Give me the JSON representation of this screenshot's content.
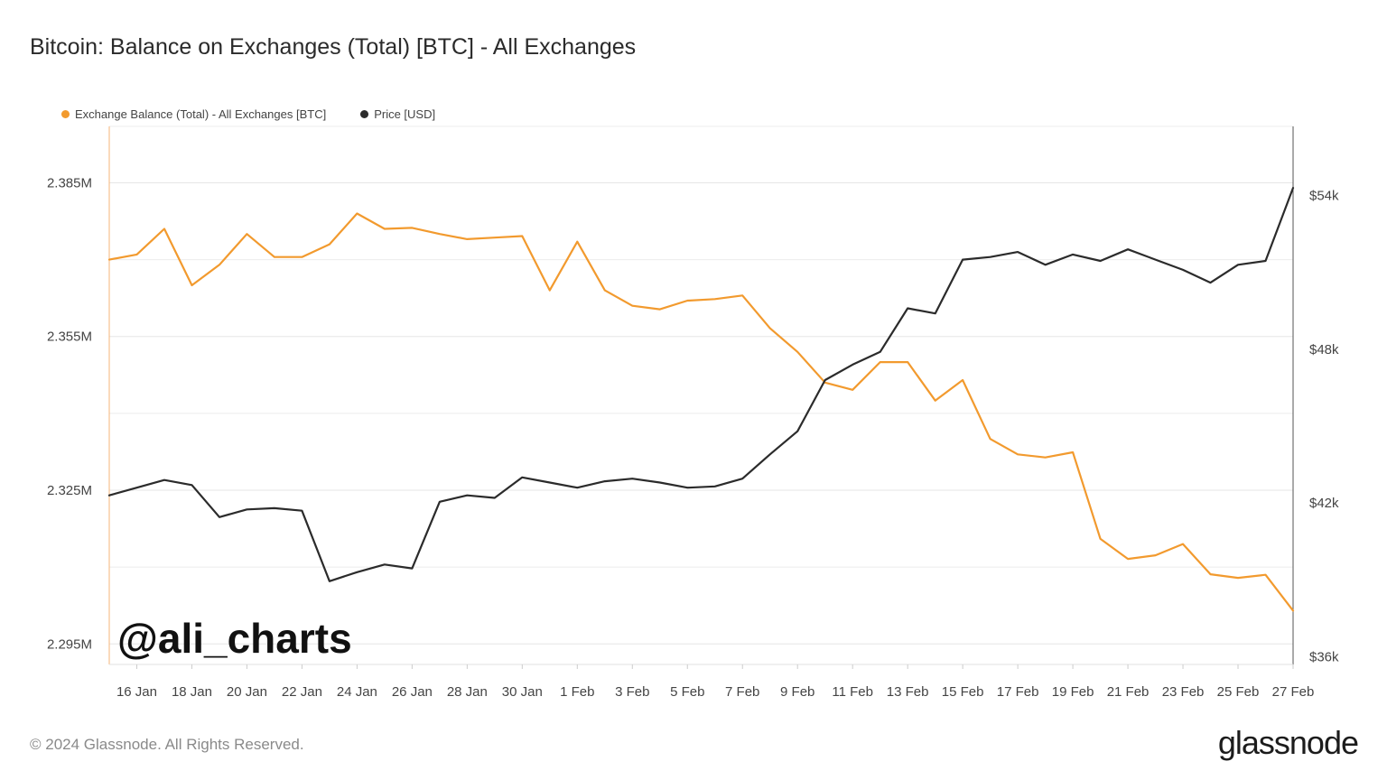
{
  "title": "Bitcoin: Balance on Exchanges (Total) [BTC] - All Exchanges",
  "footer": "© 2024 Glassnode. All Rights Reserved.",
  "logo": "glassnode",
  "legend": [
    {
      "label": "Exchange Balance (Total) - All Exchanges [BTC]",
      "color": "#f29a2e"
    },
    {
      "label": "Price [USD]",
      "color": "#2b2b2b"
    }
  ],
  "chart_data": {
    "type": "line",
    "watermark": "@ali_charts",
    "x_ticks": [
      "16 Jan",
      "18 Jan",
      "20 Jan",
      "22 Jan",
      "24 Jan",
      "26 Jan",
      "28 Jan",
      "30 Jan",
      "1 Feb",
      "3 Feb",
      "5 Feb",
      "7 Feb",
      "9 Feb",
      "11 Feb",
      "13 Feb",
      "15 Feb",
      "17 Feb",
      "19 Feb",
      "21 Feb",
      "23 Feb",
      "25 Feb",
      "27 Feb"
    ],
    "left_axis": {
      "ticks": [
        "2.385M",
        "2.355M",
        "2.325M",
        "2.295M"
      ],
      "tick_values": [
        2385000,
        2355000,
        2325000,
        2295000
      ],
      "ylim": [
        2291000,
        2396000
      ]
    },
    "right_axis": {
      "ticks": [
        "$54k",
        "$48k",
        "$42k",
        "$36k"
      ],
      "tick_values": [
        54000,
        48000,
        42000,
        36000
      ],
      "ylim": [
        35700,
        56700
      ]
    },
    "x_start": "15 Jan",
    "series": [
      {
        "name": "Exchange Balance (Total) - All Exchanges [BTC]",
        "axis": "left",
        "color": "#f29a2e",
        "values": [
          2370000,
          2371000,
          2376000,
          2365000,
          2369000,
          2375000,
          2370500,
          2370500,
          2373000,
          2379000,
          2376000,
          2376200,
          2375000,
          2374000,
          2374300,
          2374600,
          2364000,
          2373500,
          2364000,
          2361000,
          2360300,
          2362000,
          2362300,
          2363000,
          2356600,
          2352000,
          2346000,
          2344600,
          2350000,
          2350000,
          2342500,
          2346500,
          2335000,
          2332000,
          2331400,
          2332400,
          2315500,
          2311600,
          2312300,
          2314500,
          2308600,
          2307900,
          2308500,
          2301500
        ]
      },
      {
        "name": "Price [USD]",
        "axis": "right",
        "color": "#2b2b2b",
        "values": [
          42300,
          42600,
          42900,
          42700,
          41450,
          41750,
          41800,
          41700,
          38950,
          39300,
          39600,
          39450,
          42050,
          42300,
          42200,
          43000,
          42800,
          42600,
          42850,
          42950,
          42800,
          42600,
          42650,
          42950,
          43900,
          44800,
          46800,
          47400,
          47900,
          49600,
          49400,
          51500,
          51600,
          51800,
          51300,
          51700,
          51450,
          51900,
          51500,
          51100,
          50600,
          51300,
          51450,
          54300
        ]
      }
    ]
  }
}
